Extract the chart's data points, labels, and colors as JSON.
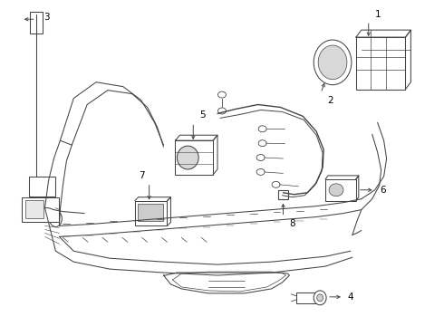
{
  "bg_color": "#ffffff",
  "line_color": "#444444",
  "figsize": [
    4.9,
    3.6
  ],
  "dpi": 100,
  "lw": 0.75
}
